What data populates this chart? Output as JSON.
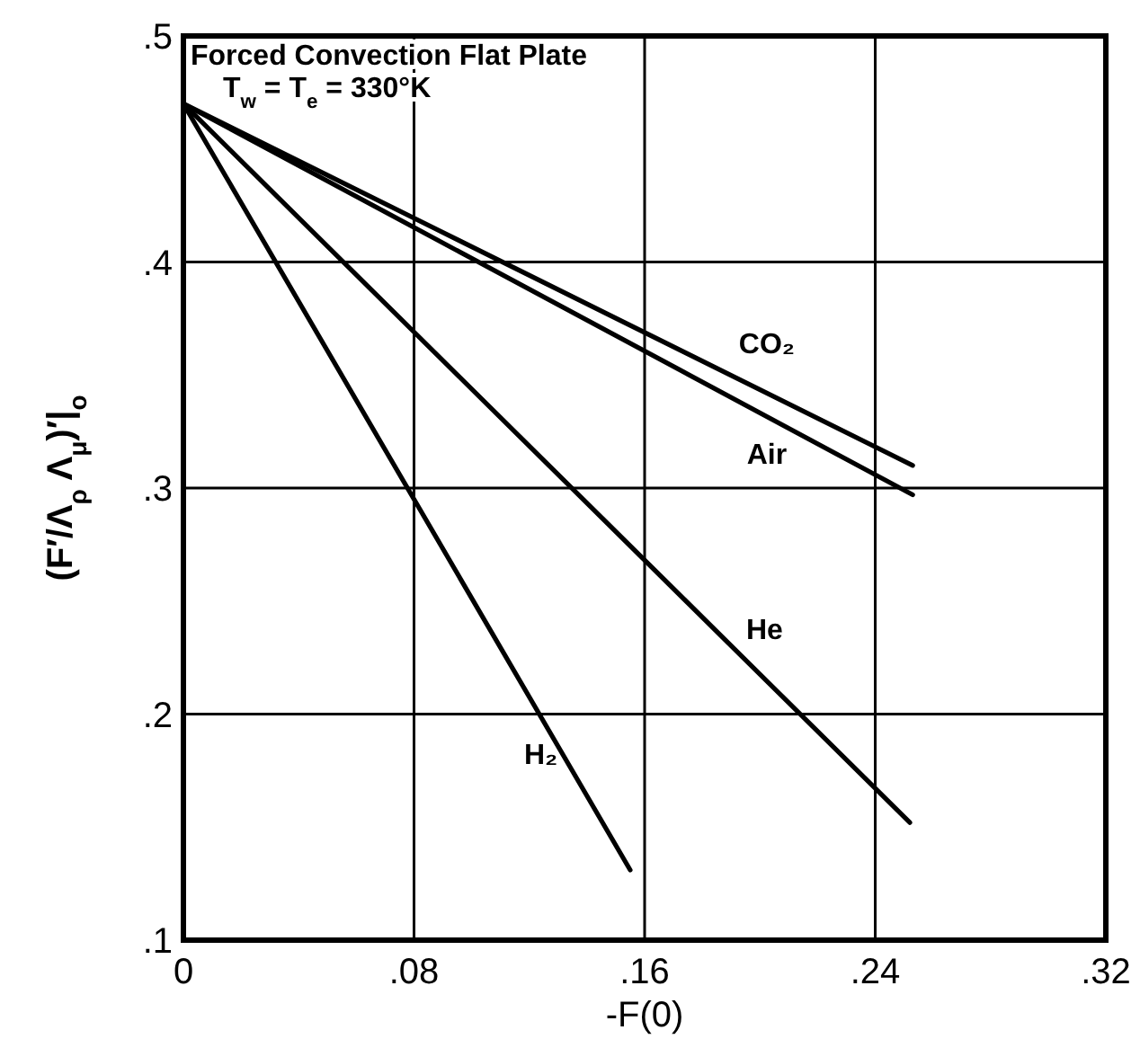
{
  "chart_data": {
    "type": "line",
    "title": "Forced Convection Flat Plate",
    "subtitle": "T$_{w}$ = T$_{e}$ = 330°K",
    "xlabel": "-F(0)",
    "ylabel": "(F′/Λ$_{ρ}$ Λ$_{μ}$)′|$_{o}$",
    "xlim": [
      0,
      0.32
    ],
    "ylim": [
      0.1,
      0.5
    ],
    "xticks": [
      0,
      {
        "value": 0.08,
        "label": ".08"
      },
      {
        "value": 0.16,
        "label": ".16"
      },
      {
        "value": 0.24,
        "label": ".24"
      },
      {
        "value": 0.32,
        "label": ".32"
      }
    ],
    "yticks": [
      {
        "value": 0.1,
        "label": ".1"
      },
      {
        "value": 0.2,
        "label": ".2"
      },
      {
        "value": 0.3,
        "label": ".3"
      },
      {
        "value": 0.4,
        "label": ".4"
      },
      {
        "value": 0.5,
        "label": ".5"
      }
    ],
    "grid": true,
    "marker": "none",
    "line_style": "solid",
    "series": [
      {
        "name": "CO₂",
        "color": "#000000",
        "x": [
          0,
          0.253
        ],
        "values": [
          0.47,
          0.31
        ]
      },
      {
        "name": "Air",
        "color": "#000000",
        "x": [
          0,
          0.253
        ],
        "values": [
          0.47,
          0.297
        ]
      },
      {
        "name": "He",
        "color": "#000000",
        "x": [
          0,
          0.252
        ],
        "values": [
          0.47,
          0.152
        ]
      },
      {
        "name": "H₂",
        "color": "#000000",
        "x": [
          0,
          0.155
        ],
        "values": [
          0.47,
          0.131
        ]
      }
    ]
  }
}
